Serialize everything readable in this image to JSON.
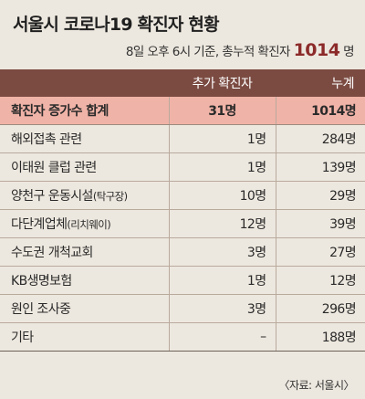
{
  "title": "서울시 코로나19 확진자 현황",
  "subtitle": {
    "prefix": "8일 오후 6시 기준, 총누적 확진자",
    "total": "1014",
    "unit": "명"
  },
  "table": {
    "headers": [
      "",
      "추가 확진자",
      "누계"
    ],
    "summary": {
      "name": "확진자 증가수 합계",
      "added": "31명",
      "cumulative": "1014명"
    },
    "rows": [
      {
        "name": "해외접촉 관련",
        "paren": "",
        "added": "1명",
        "cumulative": "284명"
      },
      {
        "name": "이태원 클럽 관련",
        "paren": "",
        "added": "1명",
        "cumulative": "139명"
      },
      {
        "name": "양천구 운동시설",
        "paren": "(탁구장)",
        "added": "10명",
        "cumulative": "29명"
      },
      {
        "name": "다단계업체",
        "paren": "(리치웨이)",
        "added": "12명",
        "cumulative": "39명"
      },
      {
        "name": "수도권 개척교회",
        "paren": "",
        "added": "3명",
        "cumulative": "27명"
      },
      {
        "name": "KB생명보험",
        "paren": "",
        "added": "1명",
        "cumulative": "12명"
      },
      {
        "name": "원인 조사중",
        "paren": "",
        "added": "3명",
        "cumulative": "296명"
      },
      {
        "name": "기타",
        "paren": "",
        "added": "–",
        "cumulative": "188명"
      }
    ]
  },
  "source": "〈자료: 서울시〉",
  "colors": {
    "background": "#ede8df",
    "header": "#7b4b42",
    "summary_row": "#f0b3a7",
    "total_highlight": "#8c2a2a"
  }
}
